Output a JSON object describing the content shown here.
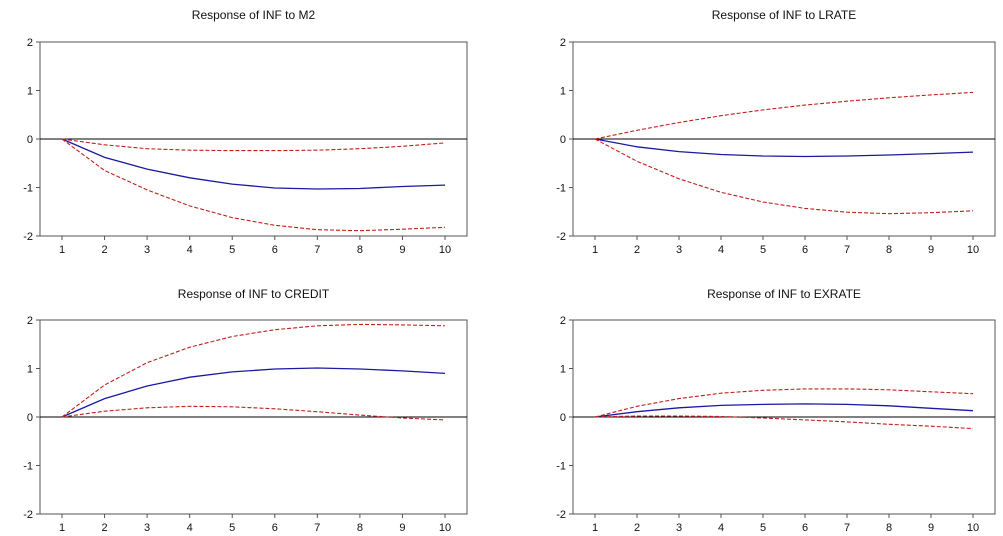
{
  "colors": {
    "response_line": "#1a1aa0",
    "band_line": "#c0201c",
    "zero_line": "#000000",
    "frame": "#555555",
    "text": "#111111"
  },
  "chart_data": [
    {
      "type": "line",
      "title": "Response of INF to M2",
      "x": [
        1,
        2,
        3,
        4,
        5,
        6,
        7,
        8,
        9,
        10
      ],
      "ylim": [
        -2,
        2
      ],
      "yticks": [
        -2,
        -1,
        0,
        1,
        2
      ],
      "series": [
        {
          "role": "response",
          "values": [
            0,
            -0.38,
            -0.62,
            -0.8,
            -0.93,
            -1.01,
            -1.03,
            -1.02,
            -0.98,
            -0.95
          ]
        },
        {
          "role": "upper",
          "values": [
            0,
            -0.12,
            -0.2,
            -0.23,
            -0.24,
            -0.24,
            -0.23,
            -0.2,
            -0.15,
            -0.08
          ]
        },
        {
          "role": "lower",
          "values": [
            0,
            -0.65,
            -1.05,
            -1.38,
            -1.62,
            -1.78,
            -1.87,
            -1.89,
            -1.86,
            -1.82
          ]
        }
      ]
    },
    {
      "type": "line",
      "title": "Response of INF to LRATE",
      "x": [
        1,
        2,
        3,
        4,
        5,
        6,
        7,
        8,
        9,
        10
      ],
      "ylim": [
        -2,
        2
      ],
      "yticks": [
        -2,
        -1,
        0,
        1,
        2
      ],
      "series": [
        {
          "role": "response",
          "values": [
            0,
            -0.16,
            -0.26,
            -0.32,
            -0.35,
            -0.36,
            -0.35,
            -0.33,
            -0.3,
            -0.27
          ]
        },
        {
          "role": "upper",
          "values": [
            0,
            0.18,
            0.34,
            0.48,
            0.6,
            0.7,
            0.78,
            0.85,
            0.91,
            0.96
          ]
        },
        {
          "role": "lower",
          "values": [
            0,
            -0.46,
            -0.82,
            -1.1,
            -1.3,
            -1.43,
            -1.51,
            -1.54,
            -1.52,
            -1.48
          ]
        }
      ]
    },
    {
      "type": "line",
      "title": "Response of INF to CREDIT",
      "x": [
        1,
        2,
        3,
        4,
        5,
        6,
        7,
        8,
        9,
        10
      ],
      "ylim": [
        -2,
        2
      ],
      "yticks": [
        -2,
        -1,
        0,
        1,
        2
      ],
      "series": [
        {
          "role": "response",
          "values": [
            0,
            0.38,
            0.64,
            0.82,
            0.93,
            0.99,
            1.01,
            0.99,
            0.95,
            0.9
          ]
        },
        {
          "role": "upper",
          "values": [
            0,
            0.66,
            1.12,
            1.44,
            1.66,
            1.8,
            1.88,
            1.91,
            1.9,
            1.88
          ]
        },
        {
          "role": "lower",
          "values": [
            0,
            0.12,
            0.19,
            0.22,
            0.21,
            0.17,
            0.11,
            0.04,
            -0.02,
            -0.06
          ]
        }
      ]
    },
    {
      "type": "line",
      "title": "Response of INF to EXRATE",
      "x": [
        1,
        2,
        3,
        4,
        5,
        6,
        7,
        8,
        9,
        10
      ],
      "ylim": [
        -2,
        2
      ],
      "yticks": [
        -2,
        -1,
        0,
        1,
        2
      ],
      "series": [
        {
          "role": "response",
          "values": [
            0,
            0.11,
            0.19,
            0.24,
            0.26,
            0.27,
            0.26,
            0.23,
            0.18,
            0.13
          ]
        },
        {
          "role": "upper",
          "values": [
            0,
            0.22,
            0.38,
            0.49,
            0.55,
            0.58,
            0.58,
            0.56,
            0.52,
            0.48
          ]
        },
        {
          "role": "lower",
          "values": [
            0,
            0.02,
            0.02,
            0.01,
            -0.02,
            -0.06,
            -0.1,
            -0.15,
            -0.19,
            -0.24
          ]
        }
      ]
    }
  ]
}
